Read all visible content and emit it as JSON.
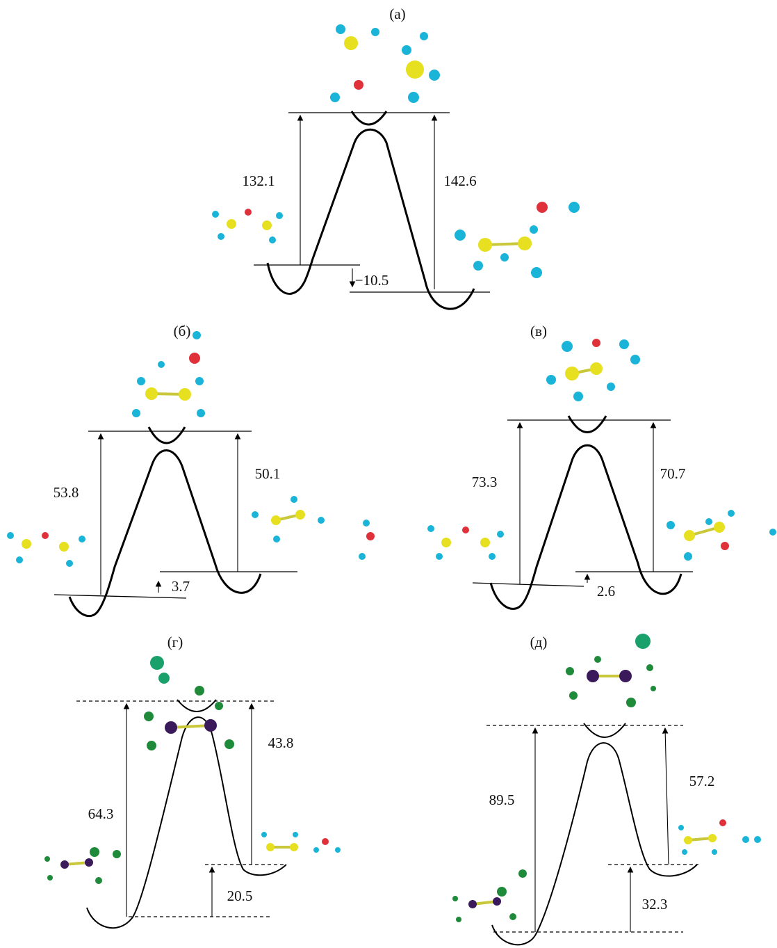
{
  "panels": [
    {
      "label": "(а)",
      "energies": [
        "132.1",
        "142.6",
        "−10.5"
      ]
    },
    {
      "label": "(б)",
      "energies": [
        "53.8",
        "50.1",
        "3.7"
      ]
    },
    {
      "label": "(в)",
      "energies": [
        "73.3",
        "70.7",
        "2.6"
      ]
    },
    {
      "label": "(г)",
      "energies": [
        "64.3",
        "43.8",
        "20.5"
      ]
    },
    {
      "label": "(д)",
      "energies": [
        "89.5",
        "57.2",
        "32.3"
      ]
    }
  ]
}
